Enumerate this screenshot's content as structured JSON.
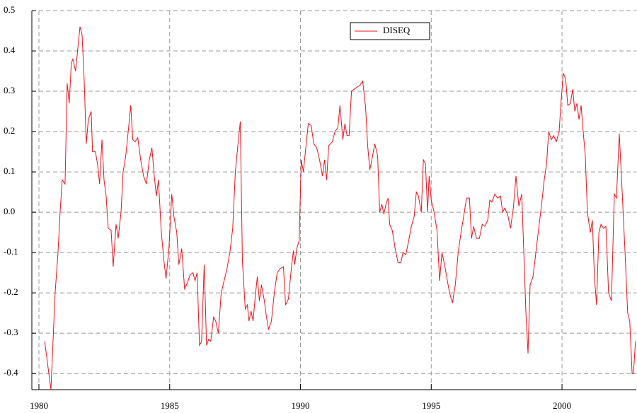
{
  "chart_data": {
    "type": "line",
    "x": [
      1980.22,
      1980.4,
      1980.46,
      1980.62,
      1980.73,
      1980.81,
      1980.89,
      1981.0,
      1981.08,
      1981.16,
      1981.24,
      1981.3,
      1981.4,
      1981.57,
      1981.65,
      1981.73,
      1981.81,
      1981.89,
      1982.0,
      1982.05,
      1982.16,
      1982.24,
      1982.32,
      1982.41,
      1982.49,
      1982.57,
      1982.65,
      1982.76,
      1982.84,
      1982.95,
      1983.03,
      1983.14,
      1983.22,
      1983.32,
      1983.43,
      1983.51,
      1983.59,
      1983.68,
      1983.78,
      1983.89,
      1984.0,
      1984.11,
      1984.22,
      1984.32,
      1984.41,
      1984.49,
      1984.57,
      1984.68,
      1984.78,
      1984.86,
      1984.97,
      1985.08,
      1985.16,
      1985.27,
      1985.35,
      1985.46,
      1985.57,
      1985.68,
      1985.78,
      1985.89,
      1985.97,
      1986.05,
      1986.14,
      1986.22,
      1986.32,
      1986.41,
      1986.49,
      1986.57,
      1986.68,
      1986.76,
      1986.86,
      1986.97,
      1987.08,
      1987.19,
      1987.3,
      1987.41,
      1987.51,
      1987.62,
      1987.7,
      1987.78,
      1987.89,
      1987.97,
      1988.03,
      1988.11,
      1988.19,
      1988.27,
      1988.35,
      1988.43,
      1988.51,
      1988.62,
      1988.7,
      1988.78,
      1988.89,
      1989.0,
      1989.11,
      1989.22,
      1989.35,
      1989.43,
      1989.54,
      1989.65,
      1989.73,
      1989.78,
      1989.86,
      1989.95,
      1990.03,
      1990.11,
      1990.22,
      1990.3,
      1990.41,
      1990.51,
      1990.62,
      1990.73,
      1990.84,
      1990.92,
      1991.0,
      1991.08,
      1991.22,
      1991.32,
      1991.43,
      1991.51,
      1991.62,
      1991.7,
      1991.78,
      1991.86,
      1991.95,
      1992.05,
      1992.16,
      1992.27,
      1992.38,
      1992.49,
      1992.57,
      1992.65,
      1992.73,
      1992.84,
      1992.95,
      1993.03,
      1993.11,
      1993.19,
      1993.27,
      1993.35,
      1993.41,
      1993.51,
      1993.62,
      1993.73,
      1993.84,
      1993.92,
      1994.03,
      1994.14,
      1994.24,
      1994.35,
      1994.43,
      1994.51,
      1994.62,
      1994.7,
      1994.78,
      1994.86,
      1994.92,
      1995.0,
      1995.11,
      1995.22,
      1995.32,
      1995.41,
      1995.51,
      1995.59,
      1995.7,
      1995.81,
      1995.92,
      1996.03,
      1996.14,
      1996.24,
      1996.35,
      1996.46,
      1996.54,
      1996.62,
      1996.73,
      1996.84,
      1996.95,
      1997.05,
      1997.16,
      1997.24,
      1997.32,
      1997.43,
      1997.54,
      1997.65,
      1997.73,
      1997.81,
      1997.92,
      1998.03,
      1998.14,
      1998.24,
      1998.35,
      1998.46,
      1998.54,
      1998.62,
      1998.7,
      1998.78,
      1998.89,
      1999.0,
      1999.11,
      1999.22,
      1999.32,
      1999.41,
      1999.49,
      1999.59,
      1999.68,
      1999.78,
      1999.89,
      1999.97,
      2000.05,
      2000.14,
      2000.22,
      2000.32,
      2000.41,
      2000.49,
      2000.57,
      2000.65,
      2000.73,
      2000.81,
      2000.89,
      2000.97,
      2001.08,
      2001.16,
      2001.24,
      2001.32,
      2001.41,
      2001.49,
      2001.59,
      2001.68,
      2001.78,
      2001.89,
      2002.0,
      2002.08,
      2002.19,
      2002.3,
      2002.41,
      2002.51,
      2002.59,
      2002.68,
      2002.73,
      2002.81
    ],
    "series": [
      {
        "name": "DISEQ",
        "color": "#e8141e",
        "values": [
          -0.32,
          -0.41,
          -0.44,
          -0.2,
          -0.1,
          0.0,
          0.08,
          0.07,
          0.32,
          0.27,
          0.37,
          0.38,
          0.35,
          0.46,
          0.44,
          0.33,
          0.17,
          0.23,
          0.25,
          0.15,
          0.15,
          0.12,
          0.07,
          0.18,
          0.08,
          0.04,
          -0.04,
          -0.045,
          -0.135,
          -0.03,
          -0.065,
          0.0,
          0.1,
          0.14,
          0.21,
          0.265,
          0.18,
          0.175,
          0.185,
          0.13,
          0.09,
          0.07,
          0.13,
          0.16,
          0.09,
          0.04,
          0.08,
          -0.05,
          -0.12,
          -0.165,
          -0.09,
          0.045,
          -0.01,
          -0.05,
          -0.13,
          -0.09,
          -0.19,
          -0.175,
          -0.155,
          -0.15,
          -0.17,
          -0.15,
          -0.33,
          -0.32,
          -0.13,
          -0.33,
          -0.315,
          -0.32,
          -0.26,
          -0.27,
          -0.3,
          -0.2,
          -0.17,
          -0.14,
          -0.1,
          -0.04,
          0.1,
          0.175,
          0.225,
          -0.12,
          -0.24,
          -0.23,
          -0.27,
          -0.245,
          -0.27,
          -0.21,
          -0.16,
          -0.22,
          -0.18,
          -0.22,
          -0.26,
          -0.29,
          -0.27,
          -0.2,
          -0.15,
          -0.14,
          -0.135,
          -0.23,
          -0.215,
          -0.14,
          -0.095,
          -0.13,
          -0.09,
          -0.07,
          0.13,
          0.1,
          0.17,
          0.22,
          0.215,
          0.17,
          0.16,
          0.13,
          0.09,
          0.13,
          0.08,
          0.165,
          0.175,
          0.2,
          0.21,
          0.265,
          0.18,
          0.22,
          0.19,
          0.19,
          0.3,
          0.305,
          0.31,
          0.315,
          0.325,
          0.26,
          0.165,
          0.105,
          0.13,
          0.17,
          0.14,
          0.0,
          0.02,
          -0.005,
          0.02,
          0.035,
          -0.03,
          -0.045,
          -0.09,
          -0.125,
          -0.125,
          -0.1,
          -0.105,
          -0.07,
          -0.035,
          -0.01,
          0.05,
          0.04,
          0.0,
          0.13,
          0.12,
          0.0,
          0.09,
          0.03,
          0.0,
          -0.045,
          -0.17,
          -0.1,
          -0.13,
          -0.16,
          -0.2,
          -0.225,
          -0.18,
          -0.1,
          -0.05,
          -0.01,
          0.035,
          0.035,
          -0.065,
          -0.035,
          -0.065,
          -0.065,
          -0.03,
          -0.035,
          -0.02,
          0.03,
          0.025,
          0.045,
          0.035,
          0.04,
          0.0,
          0.01,
          -0.005,
          -0.04,
          0.01,
          0.09,
          0.015,
          0.045,
          -0.1,
          -0.25,
          -0.35,
          -0.18,
          -0.16,
          -0.1,
          -0.04,
          0.02,
          0.08,
          0.12,
          0.2,
          0.18,
          0.19,
          0.175,
          0.2,
          0.28,
          0.345,
          0.33,
          0.265,
          0.27,
          0.305,
          0.25,
          0.27,
          0.23,
          0.265,
          0.2,
          0.14,
          0.0,
          -0.05,
          -0.02,
          -0.16,
          -0.23,
          -0.05,
          -0.03,
          -0.04,
          -0.035,
          -0.2,
          -0.22,
          0.045,
          0.035,
          0.195,
          0.05,
          -0.1,
          -0.25,
          -0.27,
          -0.4,
          -0.4,
          -0.32
        ]
      }
    ],
    "xlim": [
      1979.73,
      2002.84
    ],
    "xticks": [
      1980,
      1985,
      1990,
      1995,
      2000
    ],
    "ylim": [
      -0.44,
      0.5
    ],
    "yticks": [
      -0.4,
      -0.3,
      -0.2,
      -0.1,
      {
        "value": 0,
        "label": "0.0"
      },
      0.1,
      0.2,
      0.3,
      0.4,
      0.5
    ],
    "grid": true,
    "legend": "top"
  }
}
